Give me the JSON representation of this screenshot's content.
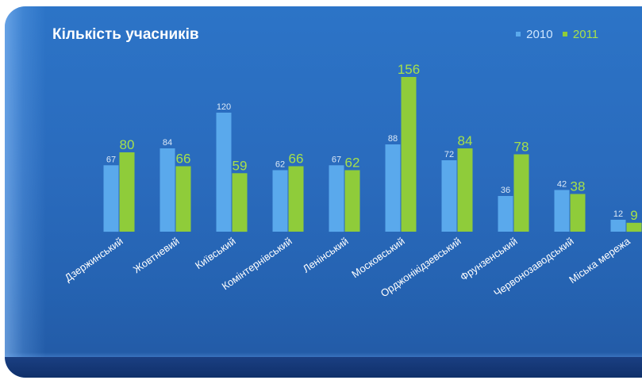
{
  "chart_data": {
    "type": "bar",
    "title": "Кількість учасників",
    "xlabel": "",
    "ylabel": "",
    "ylim": [
      0,
      160
    ],
    "grid": false,
    "legend_position": "top-right",
    "categories": [
      "Дзержинський",
      "Жовтневий",
      "Київський",
      "Комінтернівський",
      "Ленінський",
      "Московський",
      "Орджонікідзевський",
      "Фрунзенський",
      "Червонозаводський",
      "Міська мережа"
    ],
    "series": [
      {
        "name": "2010",
        "color": "#5aa9ec",
        "values": [
          67,
          84,
          120,
          62,
          67,
          88,
          72,
          36,
          42,
          12
        ]
      },
      {
        "name": "2011",
        "color": "#8fcc3a",
        "values": [
          80,
          66,
          59,
          66,
          62,
          156,
          84,
          78,
          38,
          9
        ]
      }
    ]
  },
  "colors": {
    "background": "#2a6bbd",
    "title": "#ffffff",
    "label_2010": "#dbe9f7",
    "label_2011": "#a6e04a"
  }
}
